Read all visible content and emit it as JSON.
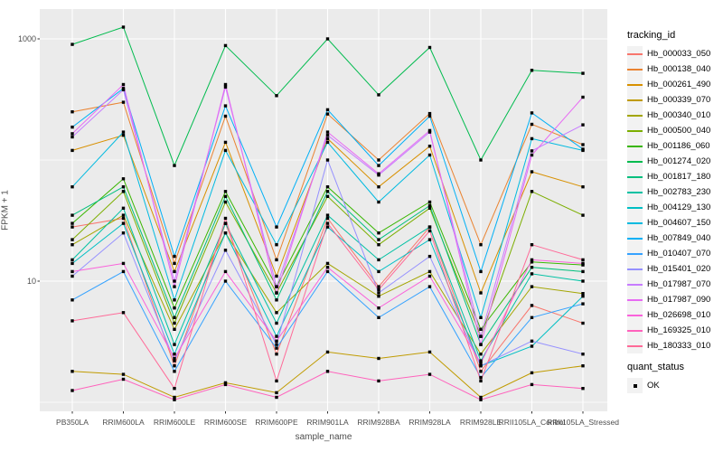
{
  "figure": {
    "background": "#FFFFFF",
    "panel_background": "#EBEBEB",
    "grid_color": "#FFFFFF",
    "axis_text_color": "#4D4D4D",
    "point_color": "#000000"
  },
  "axes": {
    "y_tick_labels": [
      "1000",
      "10"
    ],
    "y_tick_values": [
      1000,
      10
    ],
    "y_minor_grid_values": [
      100,
      1
    ]
  },
  "legend": {
    "tracking_title": "tracking_id",
    "quant_title": "quant_status",
    "quant_items": [
      {
        "label": "OK",
        "symbol": "black-square"
      }
    ]
  },
  "chart_data": {
    "type": "line",
    "title": "",
    "xlabel": "sample_name",
    "ylabel": "FPKM + 1",
    "y_scale": "log10",
    "ylim": [
      1,
      1600
    ],
    "y_ticks_labeled": [
      10,
      1000
    ],
    "y_gridlines_minor": [
      1,
      100
    ],
    "grid": true,
    "legend_position": "right",
    "point_shape": "filled-black-square (quant_status OK)",
    "x_categories": [
      "PB350LA",
      "RRIM600LA",
      "RRIM600LE",
      "RRIM600SE",
      "RRIM600PE",
      "RRIM901LA",
      "RRIM928BA",
      "RRIM928LA",
      "RRIM928LE",
      "RRII105LA_Control",
      "RRII105LA_Stressed"
    ],
    "series": [
      {
        "name": "Hb_000033_050",
        "color": "#F8766D",
        "values": [
          28,
          33,
          2.0,
          30,
          2.5,
          33,
          9,
          28,
          1.8,
          6.3,
          4.5
        ]
      },
      {
        "name": "Hb_000138_040",
        "color": "#EA8331",
        "values": [
          250,
          300,
          14,
          230,
          15,
          240,
          100,
          242,
          20,
          197,
          134
        ]
      },
      {
        "name": "Hb_000261_490",
        "color": "#D89000",
        "values": [
          120,
          160,
          12,
          140,
          11,
          150,
          60,
          130,
          8,
          80,
          60
        ]
      },
      {
        "name": "Hb_000339_070",
        "color": "#C09B00",
        "values": [
          1.8,
          1.7,
          1.1,
          1.45,
          1.2,
          2.6,
          2.3,
          2.6,
          1.1,
          1.75,
          2.0
        ]
      },
      {
        "name": "Hb_000340_010",
        "color": "#A3A500",
        "values": [
          20,
          35,
          4,
          25,
          5.5,
          14,
          7.5,
          12,
          2.5,
          9,
          7.9
        ]
      },
      {
        "name": "Hb_000500_040",
        "color": "#7CAE00",
        "values": [
          22,
          55,
          4.5,
          45,
          8,
          50,
          20,
          40,
          3.5,
          55,
          35
        ]
      },
      {
        "name": "Hb_001186_060",
        "color": "#39B600",
        "values": [
          30,
          70,
          6,
          55,
          9,
          60,
          25,
          45,
          4,
          14.4,
          13.6
        ]
      },
      {
        "name": "Hb_001274_020",
        "color": "#00BB4E",
        "values": [
          900,
          1250,
          90,
          880,
          340,
          1000,
          345,
          850,
          100,
          550,
          520
        ]
      },
      {
        "name": "Hb_001817_180",
        "color": "#00BF7D",
        "values": [
          35,
          60,
          5,
          50,
          7,
          55,
          22,
          42,
          3,
          13,
          12
        ]
      },
      {
        "name": "Hb_002783_230",
        "color": "#00C1A3",
        "values": [
          15,
          40,
          3,
          30,
          4.5,
          35,
          15,
          28,
          2.2,
          11.5,
          10
        ]
      },
      {
        "name": "Hb_004129_130",
        "color": "#00BFC4",
        "values": [
          14,
          30,
          2.5,
          25,
          3.5,
          28,
          12,
          22,
          2.0,
          2.9,
          7.5
        ]
      },
      {
        "name": "Hb_004607_150",
        "color": "#00BAE0",
        "values": [
          60,
          170,
          7,
          120,
          20,
          140,
          45,
          110,
          5,
          150,
          120
        ]
      },
      {
        "name": "Hb_007849_040",
        "color": "#00B0F6",
        "values": [
          187,
          390,
          16,
          280,
          28,
          260,
          90,
          230,
          12,
          245,
          123
        ]
      },
      {
        "name": "Hb_010407_070",
        "color": "#35A2FF",
        "values": [
          7,
          12,
          1.8,
          10,
          2.8,
          12,
          5,
          9,
          1.6,
          5,
          6.5
        ]
      },
      {
        "name": "Hb_015401_020",
        "color": "#9590FF",
        "values": [
          11,
          25,
          2.2,
          18,
          3,
          100,
          8,
          16,
          2.0,
          3.2,
          2.5
        ]
      },
      {
        "name": "Hb_017987_070",
        "color": "#C77CFF",
        "values": [
          155,
          380,
          10,
          400,
          9,
          160,
          75,
          170,
          3.5,
          119,
          195
        ]
      },
      {
        "name": "Hb_017987_090",
        "color": "#E76BF3",
        "values": [
          165,
          420,
          9,
          420,
          8,
          170,
          77,
          175,
          3,
          110,
          330
        ]
      },
      {
        "name": "Hb_026698_010",
        "color": "#FA62DB",
        "values": [
          12,
          14,
          2.3,
          12,
          3.2,
          13,
          6,
          11,
          2.1,
          15,
          14
        ]
      },
      {
        "name": "Hb_169325_010",
        "color": "#FF62BC",
        "values": [
          1.25,
          1.55,
          1.05,
          1.4,
          1.1,
          1.8,
          1.5,
          1.7,
          1.05,
          1.4,
          1.3
        ]
      },
      {
        "name": "Hb_180333_010",
        "color": "#FF6A98",
        "values": [
          4.7,
          5.5,
          1.3,
          33,
          1.5,
          30,
          8.5,
          26,
          1.5,
          20,
          15
        ]
      }
    ]
  }
}
